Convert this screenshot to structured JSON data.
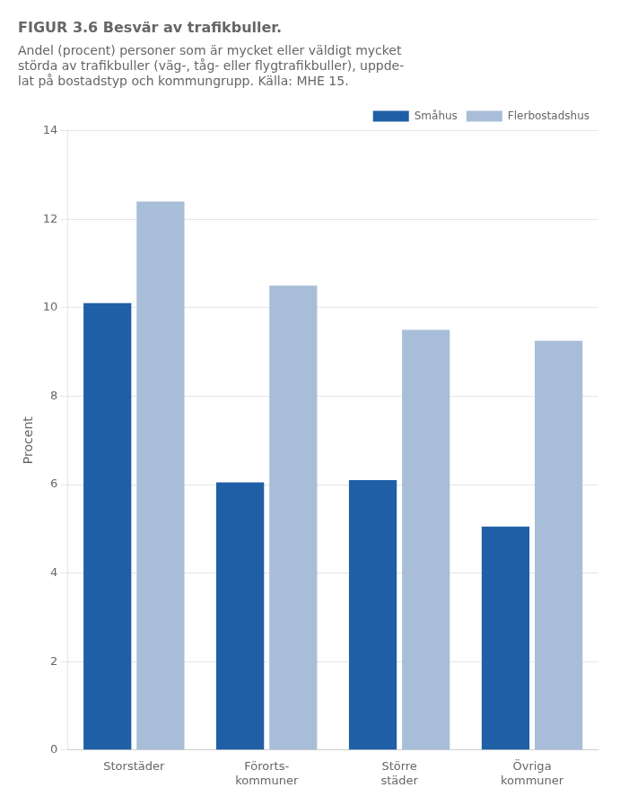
{
  "chart_data": {
    "type": "bar",
    "title": "FIGUR 3.6 Besvär av trafikbuller.",
    "subtitle": [
      "Andel (procent) personer som är mycket eller väldigt mycket",
      "störda av trafikbuller (väg-, tåg- eller flygtrafikbuller), uppde-",
      "lat på bostadstyp och kommungrupp. Källa: MHE 15."
    ],
    "y_label": "Procent",
    "categories": [
      "Storstäder",
      "Förorts-\nkommuner",
      "Större\nstäder",
      "Övriga\nkommuner"
    ],
    "series": [
      {
        "name": "Småhus",
        "color": "#1f5fa6",
        "values": [
          10.1,
          6.05,
          6.1,
          5.05
        ]
      },
      {
        "name": "Flerbostadshus",
        "color": "#a8bed8",
        "values": [
          12.4,
          10.5,
          9.5,
          9.25
        ]
      }
    ],
    "ylim": [
      0,
      14
    ],
    "yticks": [
      0,
      2,
      4,
      6,
      8,
      10,
      12,
      14
    ],
    "grid": true,
    "legend": "upper right"
  }
}
